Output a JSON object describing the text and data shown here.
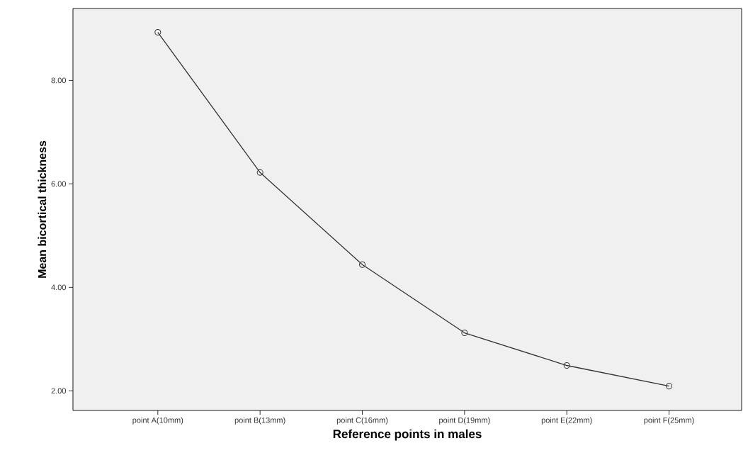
{
  "chart_data": {
    "type": "line",
    "xlabel": "Reference points in males",
    "ylabel": "Mean  bicortical thickness",
    "categories": [
      "point A(10mm)",
      "point B(13mm)",
      "point C(16mm)",
      "point D(19mm)",
      "point E(22mm)",
      "point F(25mm)"
    ],
    "values": [
      8.93,
      6.22,
      4.44,
      3.12,
      2.49,
      2.09
    ],
    "color": "#333333",
    "ylim": [
      1.62,
      9.39
    ],
    "yticks": [
      {
        "value": 2,
        "label": "2.00"
      },
      {
        "value": 4,
        "label": "4.00"
      },
      {
        "value": 6,
        "label": "6.00"
      },
      {
        "value": 8,
        "label": "8.00"
      }
    ],
    "marker": "circle",
    "line_style": "solid",
    "grid": false
  }
}
